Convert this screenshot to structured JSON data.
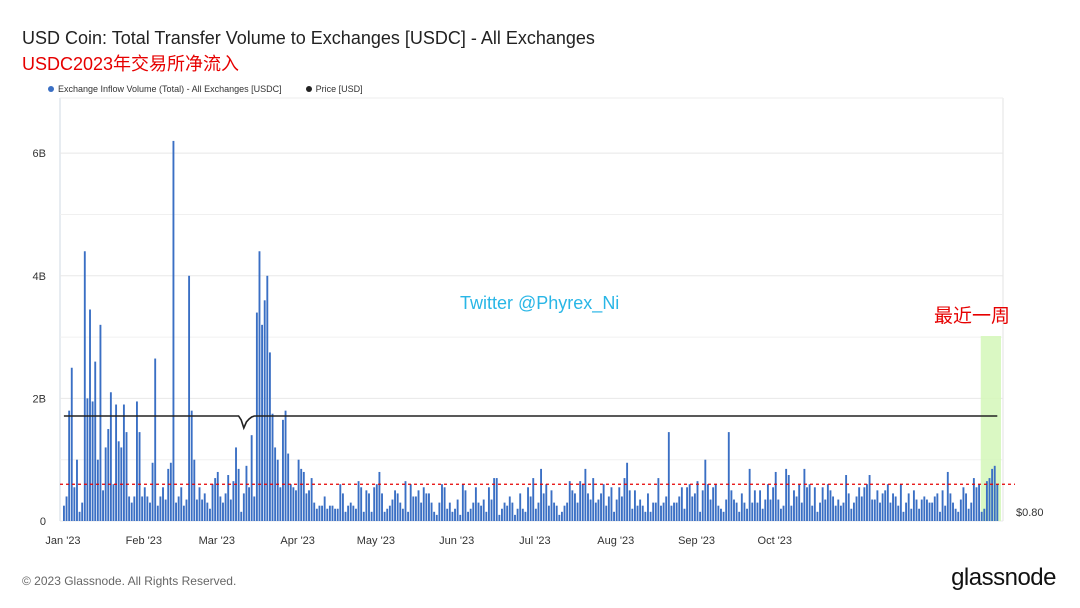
{
  "header": {
    "title": "USD Coin: Total Transfer Volume to Exchanges [USDC] - All Exchanges",
    "subtitle": "USDC2023年交易所净流入"
  },
  "legend": {
    "series_inflow": "Exchange Inflow Volume (Total) - All Exchanges [USDC]",
    "series_price": "Price [USD]"
  },
  "annotations": {
    "watermark": "Twitter @Phyrex_Ni",
    "recent_week": "最近一周",
    "price_axis_label": "$0.80"
  },
  "footer": {
    "copyright": "© 2023 Glassnode. All Rights Reserved.",
    "brand": "glassnode"
  },
  "colors": {
    "bar": "#3a6fc4",
    "price_line": "#222222",
    "threshold": "#e60000",
    "highlight": "#d4f7b8"
  },
  "chart_data": {
    "type": "bar",
    "title": "USD Coin: Total Transfer Volume to Exchanges [USDC] - All Exchanges",
    "xlabel": "",
    "ylabel": "",
    "ylim": [
      0,
      6.9
    ],
    "y_ticks": [
      {
        "value": 0,
        "label": "0"
      },
      {
        "value": 2,
        "label": "2B"
      },
      {
        "value": 4,
        "label": "4B"
      },
      {
        "value": 6,
        "label": "6B"
      }
    ],
    "x_ticks": [
      "Jan '23",
      "Feb '23",
      "Mar '23",
      "Apr '23",
      "May '23",
      "Jun '23",
      "Jul '23",
      "Aug '23",
      "Sep '23",
      "Oct '23"
    ],
    "grid": true,
    "legend_position": "top-left",
    "threshold_value": 0.6,
    "highlight_range": "last 7 days",
    "price_series": {
      "name": "Price [USD]",
      "typical": 1.0,
      "dip_date": "2023-03-11",
      "dip_value": 0.87
    },
    "series": [
      {
        "name": "Exchange Inflow Volume (Total) - All Exchanges [USDC]",
        "unit": "B USDC",
        "start_date": "2023-01-01",
        "values": [
          0.25,
          0.4,
          1.8,
          2.5,
          0.55,
          1.0,
          0.15,
          0.3,
          4.4,
          2.0,
          3.45,
          1.95,
          2.6,
          1.0,
          3.2,
          0.5,
          1.2,
          1.5,
          2.1,
          0.6,
          1.9,
          1.3,
          1.2,
          1.9,
          1.45,
          0.4,
          0.3,
          0.4,
          1.95,
          1.45,
          0.4,
          0.55,
          0.4,
          0.3,
          0.95,
          2.65,
          0.25,
          0.4,
          0.55,
          0.35,
          0.85,
          0.95,
          6.2,
          0.3,
          0.4,
          0.55,
          0.25,
          0.35,
          4.0,
          1.8,
          1.0,
          0.35,
          0.55,
          0.35,
          0.45,
          0.3,
          0.2,
          0.6,
          0.7,
          0.8,
          0.4,
          0.3,
          0.45,
          0.75,
          0.35,
          0.65,
          1.2,
          0.85,
          0.15,
          0.45,
          0.9,
          0.55,
          1.4,
          0.4,
          3.4,
          4.4,
          3.2,
          3.6,
          4.0,
          2.75,
          1.75,
          1.2,
          1.0,
          0.55,
          1.65,
          1.8,
          1.1,
          0.6,
          0.55,
          0.5,
          1.0,
          0.85,
          0.8,
          0.45,
          0.5,
          0.7,
          0.3,
          0.2,
          0.25,
          0.25,
          0.4,
          0.2,
          0.25,
          0.25,
          0.2,
          0.2,
          0.6,
          0.45,
          0.15,
          0.25,
          0.3,
          0.25,
          0.2,
          0.65,
          0.55,
          0.15,
          0.5,
          0.45,
          0.15,
          0.55,
          0.6,
          0.8,
          0.45,
          0.15,
          0.2,
          0.25,
          0.35,
          0.5,
          0.45,
          0.3,
          0.2,
          0.65,
          0.15,
          0.6,
          0.4,
          0.4,
          0.5,
          0.3,
          0.55,
          0.45,
          0.45,
          0.3,
          0.15,
          0.1,
          0.3,
          0.6,
          0.55,
          0.2,
          0.3,
          0.15,
          0.2,
          0.35,
          0.1,
          0.6,
          0.5,
          0.15,
          0.2,
          0.3,
          0.55,
          0.3,
          0.25,
          0.35,
          0.15,
          0.55,
          0.35,
          0.7,
          0.7,
          0.1,
          0.2,
          0.3,
          0.25,
          0.4,
          0.3,
          0.1,
          0.2,
          0.45,
          0.2,
          0.15,
          0.55,
          0.4,
          0.7,
          0.2,
          0.3,
          0.85,
          0.45,
          0.6,
          0.25,
          0.5,
          0.3,
          0.25,
          0.1,
          0.15,
          0.25,
          0.3,
          0.65,
          0.5,
          0.45,
          0.3,
          0.65,
          0.6,
          0.85,
          0.45,
          0.35,
          0.7,
          0.3,
          0.35,
          0.45,
          0.6,
          0.25,
          0.4,
          0.55,
          0.15,
          0.35,
          0.55,
          0.4,
          0.7,
          0.95,
          0.5,
          0.2,
          0.5,
          0.25,
          0.35,
          0.25,
          0.15,
          0.45,
          0.15,
          0.3,
          0.3,
          0.7,
          0.25,
          0.3,
          0.4,
          1.45,
          0.25,
          0.3,
          0.3,
          0.4,
          0.55,
          0.2,
          0.55,
          0.6,
          0.4,
          0.45,
          0.65,
          0.15,
          0.5,
          1.0,
          0.6,
          0.35,
          0.55,
          0.6,
          0.25,
          0.2,
          0.15,
          0.35,
          1.45,
          0.5,
          0.35,
          0.3,
          0.15,
          0.45,
          0.3,
          0.2,
          0.85,
          0.3,
          0.5,
          0.3,
          0.5,
          0.2,
          0.35,
          0.6,
          0.35,
          0.55,
          0.8,
          0.35,
          0.2,
          0.25,
          0.85,
          0.75,
          0.25,
          0.5,
          0.4,
          0.6,
          0.3,
          0.85,
          0.55,
          0.6,
          0.25,
          0.55,
          0.15,
          0.3,
          0.55,
          0.35,
          0.6,
          0.5,
          0.4,
          0.25,
          0.35,
          0.25,
          0.3,
          0.75,
          0.45,
          0.2,
          0.3,
          0.4,
          0.55,
          0.4,
          0.55,
          0.6,
          0.75,
          0.35,
          0.35,
          0.5,
          0.3,
          0.45,
          0.5,
          0.6,
          0.3,
          0.45,
          0.4,
          0.25,
          0.6,
          0.15,
          0.3,
          0.45,
          0.2,
          0.5,
          0.35,
          0.2,
          0.35,
          0.4,
          0.35,
          0.3,
          0.3,
          0.4,
          0.45,
          0.15,
          0.5,
          0.25,
          0.8,
          0.45,
          0.3,
          0.2,
          0.15,
          0.35,
          0.55,
          0.45,
          0.2,
          0.3,
          0.7,
          0.55,
          0.6,
          0.15,
          0.2,
          0.65,
          0.7,
          0.85,
          0.9,
          0.6
        ]
      }
    ]
  }
}
